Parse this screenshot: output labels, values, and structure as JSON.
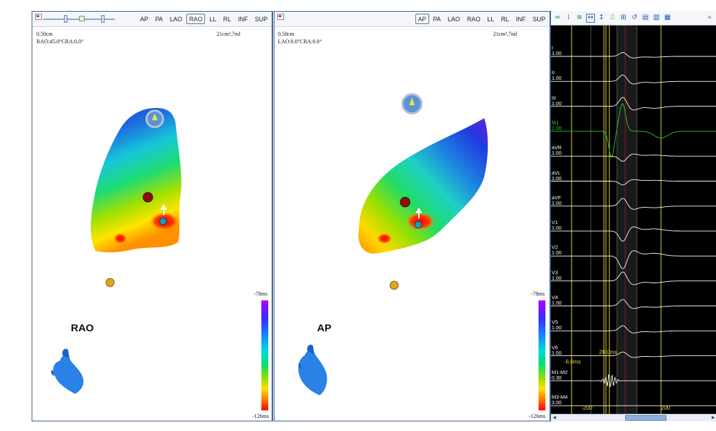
{
  "rao_pane": {
    "buttons": [
      "AP",
      "PA",
      "LAO",
      "RAO",
      "LL",
      "RL",
      "INF",
      "SUP"
    ],
    "active_view": "RAO",
    "scale_text": "0.50cm",
    "angle_text": "RAO:45.0°CRA:0.0°",
    "area_text": "21cm²,7ml",
    "view_label": "RAO",
    "scale_max": "-78ms",
    "scale_min": "-126ms"
  },
  "ap_pane": {
    "buttons": [
      "AP",
      "PA",
      "LAO",
      "RAO",
      "LL",
      "RL",
      "INF",
      "SUP"
    ],
    "active_view": "AP",
    "scale_text": "0.58cm",
    "angle_text": "LAO:0.0°CRA:0.0°",
    "area_text": "21cm²,7ml",
    "view_label": "AP",
    "scale_max": "-78ms",
    "scale_min": "-126ms"
  },
  "egm": {
    "toolbar_icons": [
      "waveform-icon",
      "marker-icon",
      "filter-icon",
      "fit-horizontal-icon",
      "fit-vertical-icon",
      "pulse-icon",
      "reference-icon",
      "loop-icon",
      "layout-a-icon",
      "layout-b-icon",
      "layout-c-icon"
    ],
    "leads": [
      {
        "name": "I",
        "gain": "1.00",
        "color": "#ffffff"
      },
      {
        "name": "II",
        "gain": "1.00",
        "color": "#ffffff"
      },
      {
        "name": "III",
        "gain": "1.00",
        "color": "#ffffff"
      },
      {
        "name": "M1",
        "gain": "1.00",
        "color": "#25d12a"
      },
      {
        "name": "aVR",
        "gain": "1.00",
        "color": "#ffffff"
      },
      {
        "name": "aVL",
        "gain": "1.00",
        "color": "#ffffff"
      },
      {
        "name": "aVF",
        "gain": "1.00",
        "color": "#ffffff"
      },
      {
        "name": "V1",
        "gain": "1.00",
        "color": "#ffffff"
      },
      {
        "name": "V2",
        "gain": "1.00",
        "color": "#ffffff"
      },
      {
        "name": "V3",
        "gain": "1.00",
        "color": "#ffffff"
      },
      {
        "name": "V4",
        "gain": "1.00",
        "color": "#ffffff"
      },
      {
        "name": "V5",
        "gain": "1.00",
        "color": "#ffffff"
      },
      {
        "name": "V6",
        "gain": "1.00",
        "color": "#ffffff"
      },
      {
        "name": "M1-M2",
        "gain": "0.30",
        "color": "#ffffff"
      },
      {
        "name": "M3-M4",
        "gain": "3.00",
        "color": "#ffffff"
      }
    ],
    "measure_left": "-6.0ms",
    "measure_right": "28.0ms",
    "axis_left": "-200",
    "axis_right": "200",
    "more_glyph": "»"
  },
  "colors": {
    "pane_border": "#3a5f95",
    "marker_yellow": "#e8d23a",
    "green_trace": "#25d12a"
  }
}
